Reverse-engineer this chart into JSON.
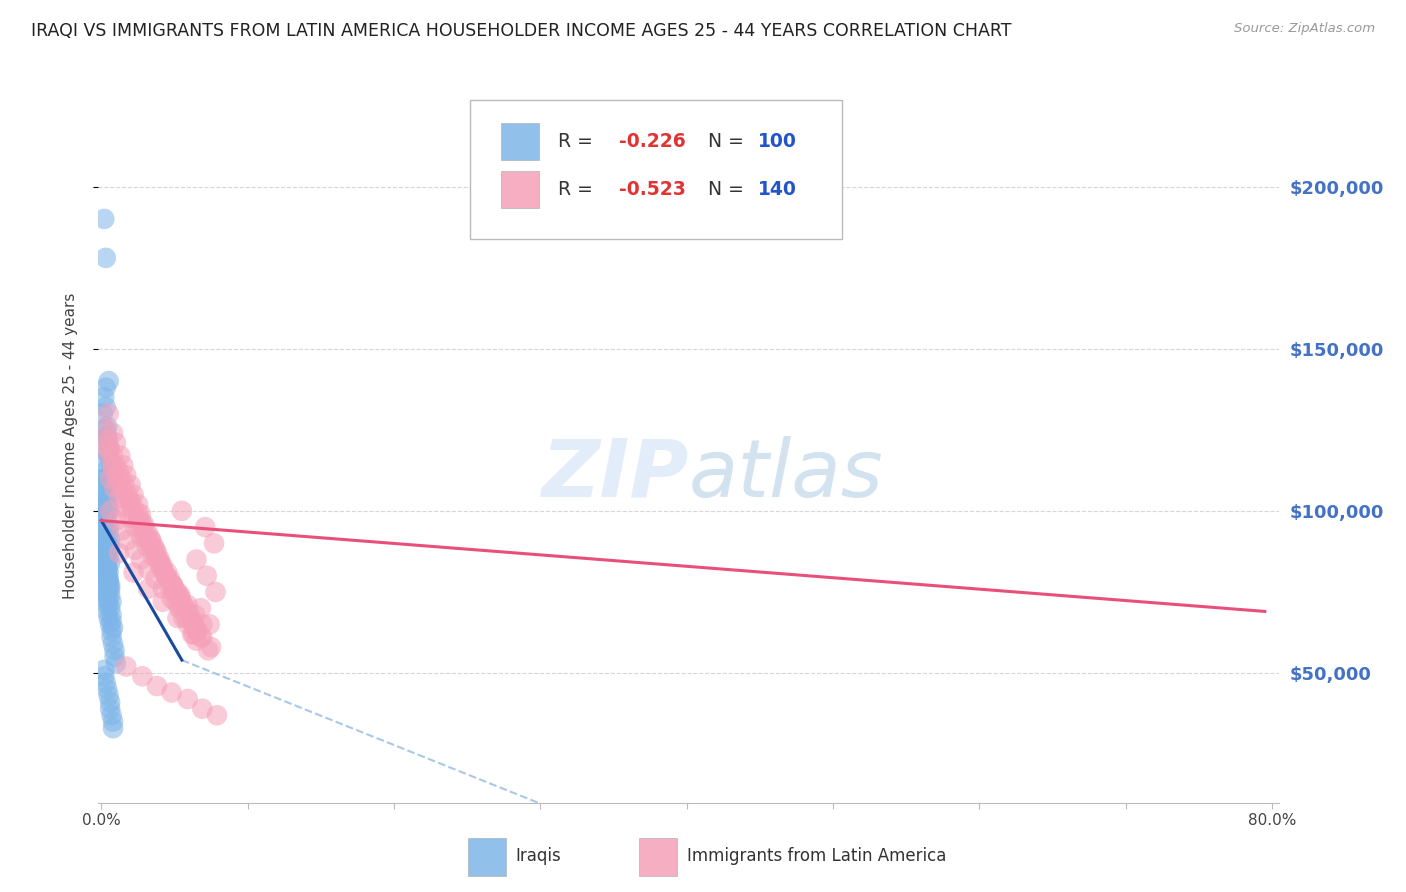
{
  "title": "IRAQI VS IMMIGRANTS FROM LATIN AMERICA HOUSEHOLDER INCOME AGES 25 - 44 YEARS CORRELATION CHART",
  "source": "Source: ZipAtlas.com",
  "ylabel": "Householder Income Ages 25 - 44 years",
  "xlim": [
    -0.002,
    0.805
  ],
  "ylim": [
    10000,
    230000
  ],
  "yticks": [
    50000,
    100000,
    150000,
    200000
  ],
  "ytick_labels": [
    "$50,000",
    "$100,000",
    "$150,000",
    "$200,000"
  ],
  "xtick_positions": [
    0.0,
    0.1,
    0.2,
    0.3,
    0.4,
    0.5,
    0.6,
    0.7,
    0.8
  ],
  "xtick_labels": [
    "0.0%",
    "",
    "",
    "",
    "",
    "",
    "",
    "",
    "80.0%"
  ],
  "background_color": "#ffffff",
  "grid_color": "#cccccc",
  "title_color": "#222222",
  "title_fontsize": 12.5,
  "ylabel_fontsize": 11,
  "axis_label_color": "#444444",
  "ytick_color": "#4472c4",
  "source_color": "#999999",
  "blue_scatter_color": "#7eb5e8",
  "pink_scatter_color": "#f5a0b8",
  "blue_line_color": "#1a4a9e",
  "pink_line_color": "#e8507a",
  "blue_dashed_color": "#a8c8e8",
  "legend_label_blue": "Iraqis",
  "legend_label_pink": "Immigrants from Latin America",
  "blue_trend": [
    0.0,
    0.055,
    97000,
    54000
  ],
  "blue_dash": [
    0.055,
    0.52,
    54000,
    -30000
  ],
  "pink_trend": [
    0.0,
    0.795,
    97000,
    69000
  ],
  "blue_dots_x": [
    0.002,
    0.003,
    0.001,
    0.002,
    0.003,
    0.004,
    0.004,
    0.005,
    0.003,
    0.003,
    0.004,
    0.004,
    0.005,
    0.005,
    0.006,
    0.002,
    0.003,
    0.003,
    0.004,
    0.004,
    0.001,
    0.002,
    0.003,
    0.003,
    0.004,
    0.004,
    0.005,
    0.001,
    0.002,
    0.003,
    0.003,
    0.004,
    0.005,
    0.005,
    0.006,
    0.002,
    0.003,
    0.004,
    0.004,
    0.005,
    0.005,
    0.006,
    0.006,
    0.001,
    0.002,
    0.003,
    0.004,
    0.004,
    0.005,
    0.005,
    0.001,
    0.002,
    0.003,
    0.003,
    0.004,
    0.004,
    0.005,
    0.005,
    0.006,
    0.002,
    0.002,
    0.003,
    0.004,
    0.004,
    0.005,
    0.006,
    0.006,
    0.007,
    0.001,
    0.002,
    0.003,
    0.003,
    0.004,
    0.005,
    0.006,
    0.007,
    0.007,
    0.008,
    0.002,
    0.003,
    0.004,
    0.004,
    0.005,
    0.006,
    0.007,
    0.007,
    0.008,
    0.009,
    0.009,
    0.01,
    0.002,
    0.002,
    0.003,
    0.004,
    0.005,
    0.006,
    0.006,
    0.007,
    0.008,
    0.008
  ],
  "blue_dots_y": [
    190000,
    178000,
    130000,
    135000,
    125000,
    122000,
    118000,
    140000,
    138000,
    132000,
    126000,
    123000,
    120000,
    117000,
    115000,
    110000,
    108000,
    105000,
    103000,
    100000,
    115000,
    112000,
    110000,
    107000,
    104000,
    102000,
    100000,
    98000,
    96000,
    94000,
    92000,
    90000,
    88000,
    86000,
    84000,
    105000,
    102000,
    100000,
    97000,
    95000,
    93000,
    91000,
    89000,
    88000,
    86000,
    84000,
    82000,
    80000,
    78000,
    76000,
    95000,
    92000,
    90000,
    87000,
    85000,
    83000,
    81000,
    79000,
    77000,
    88000,
    86000,
    84000,
    82000,
    80000,
    78000,
    76000,
    74000,
    72000,
    82000,
    80000,
    78000,
    76000,
    74000,
    72000,
    70000,
    68000,
    66000,
    64000,
    75000,
    73000,
    71000,
    69000,
    67000,
    65000,
    63000,
    61000,
    59000,
    57000,
    55000,
    53000,
    51000,
    49000,
    47000,
    45000,
    43000,
    41000,
    39000,
    37000,
    35000,
    33000
  ],
  "pink_dots_x": [
    0.003,
    0.005,
    0.007,
    0.008,
    0.01,
    0.012,
    0.014,
    0.016,
    0.018,
    0.02,
    0.022,
    0.025,
    0.027,
    0.029,
    0.031,
    0.033,
    0.035,
    0.037,
    0.04,
    0.042,
    0.044,
    0.047,
    0.049,
    0.051,
    0.054,
    0.056,
    0.058,
    0.061,
    0.063,
    0.065,
    0.004,
    0.006,
    0.008,
    0.01,
    0.012,
    0.014,
    0.016,
    0.018,
    0.02,
    0.022,
    0.025,
    0.027,
    0.029,
    0.031,
    0.034,
    0.036,
    0.038,
    0.04,
    0.042,
    0.045,
    0.047,
    0.049,
    0.052,
    0.054,
    0.056,
    0.059,
    0.061,
    0.063,
    0.066,
    0.068,
    0.005,
    0.008,
    0.01,
    0.013,
    0.015,
    0.017,
    0.02,
    0.022,
    0.025,
    0.027,
    0.029,
    0.032,
    0.034,
    0.037,
    0.039,
    0.041,
    0.044,
    0.046,
    0.049,
    0.051,
    0.054,
    0.056,
    0.059,
    0.062,
    0.065,
    0.003,
    0.006,
    0.009,
    0.012,
    0.015,
    0.019,
    0.023,
    0.027,
    0.031,
    0.035,
    0.04,
    0.044,
    0.049,
    0.054,
    0.059,
    0.064,
    0.069,
    0.006,
    0.01,
    0.014,
    0.018,
    0.023,
    0.027,
    0.032,
    0.037,
    0.042,
    0.048,
    0.053,
    0.058,
    0.064,
    0.069,
    0.075,
    0.012,
    0.022,
    0.032,
    0.042,
    0.052,
    0.063,
    0.073,
    0.017,
    0.028,
    0.038,
    0.048,
    0.059,
    0.069,
    0.079,
    0.055,
    0.071,
    0.077,
    0.065,
    0.072,
    0.078,
    0.068,
    0.074
  ],
  "pink_dots_y": [
    120000,
    118000,
    115000,
    113000,
    111000,
    109000,
    107000,
    105000,
    103000,
    101000,
    99000,
    97000,
    95000,
    93000,
    91000,
    90000,
    88000,
    86000,
    84000,
    82000,
    80000,
    78000,
    77000,
    75000,
    73000,
    71000,
    69000,
    67000,
    65000,
    63000,
    122000,
    119000,
    117000,
    114000,
    112000,
    110000,
    108000,
    105000,
    103000,
    101000,
    99000,
    97000,
    95000,
    93000,
    91000,
    89000,
    87000,
    85000,
    83000,
    81000,
    79000,
    77000,
    75000,
    73000,
    71000,
    69000,
    67000,
    65000,
    63000,
    61000,
    130000,
    124000,
    121000,
    117000,
    114000,
    111000,
    108000,
    105000,
    102000,
    99000,
    96000,
    93000,
    91000,
    88000,
    85000,
    83000,
    80000,
    77000,
    75000,
    72000,
    70000,
    67000,
    65000,
    62000,
    60000,
    125000,
    110000,
    107000,
    104000,
    101000,
    98000,
    95000,
    92000,
    89000,
    86000,
    83000,
    80000,
    77000,
    74000,
    71000,
    68000,
    65000,
    100000,
    97000,
    94000,
    91000,
    88000,
    85000,
    82000,
    79000,
    76000,
    73000,
    70000,
    67000,
    64000,
    61000,
    58000,
    87000,
    81000,
    76000,
    72000,
    67000,
    62000,
    57000,
    52000,
    49000,
    46000,
    44000,
    42000,
    39000,
    37000,
    100000,
    95000,
    90000,
    85000,
    80000,
    75000,
    70000,
    65000
  ]
}
